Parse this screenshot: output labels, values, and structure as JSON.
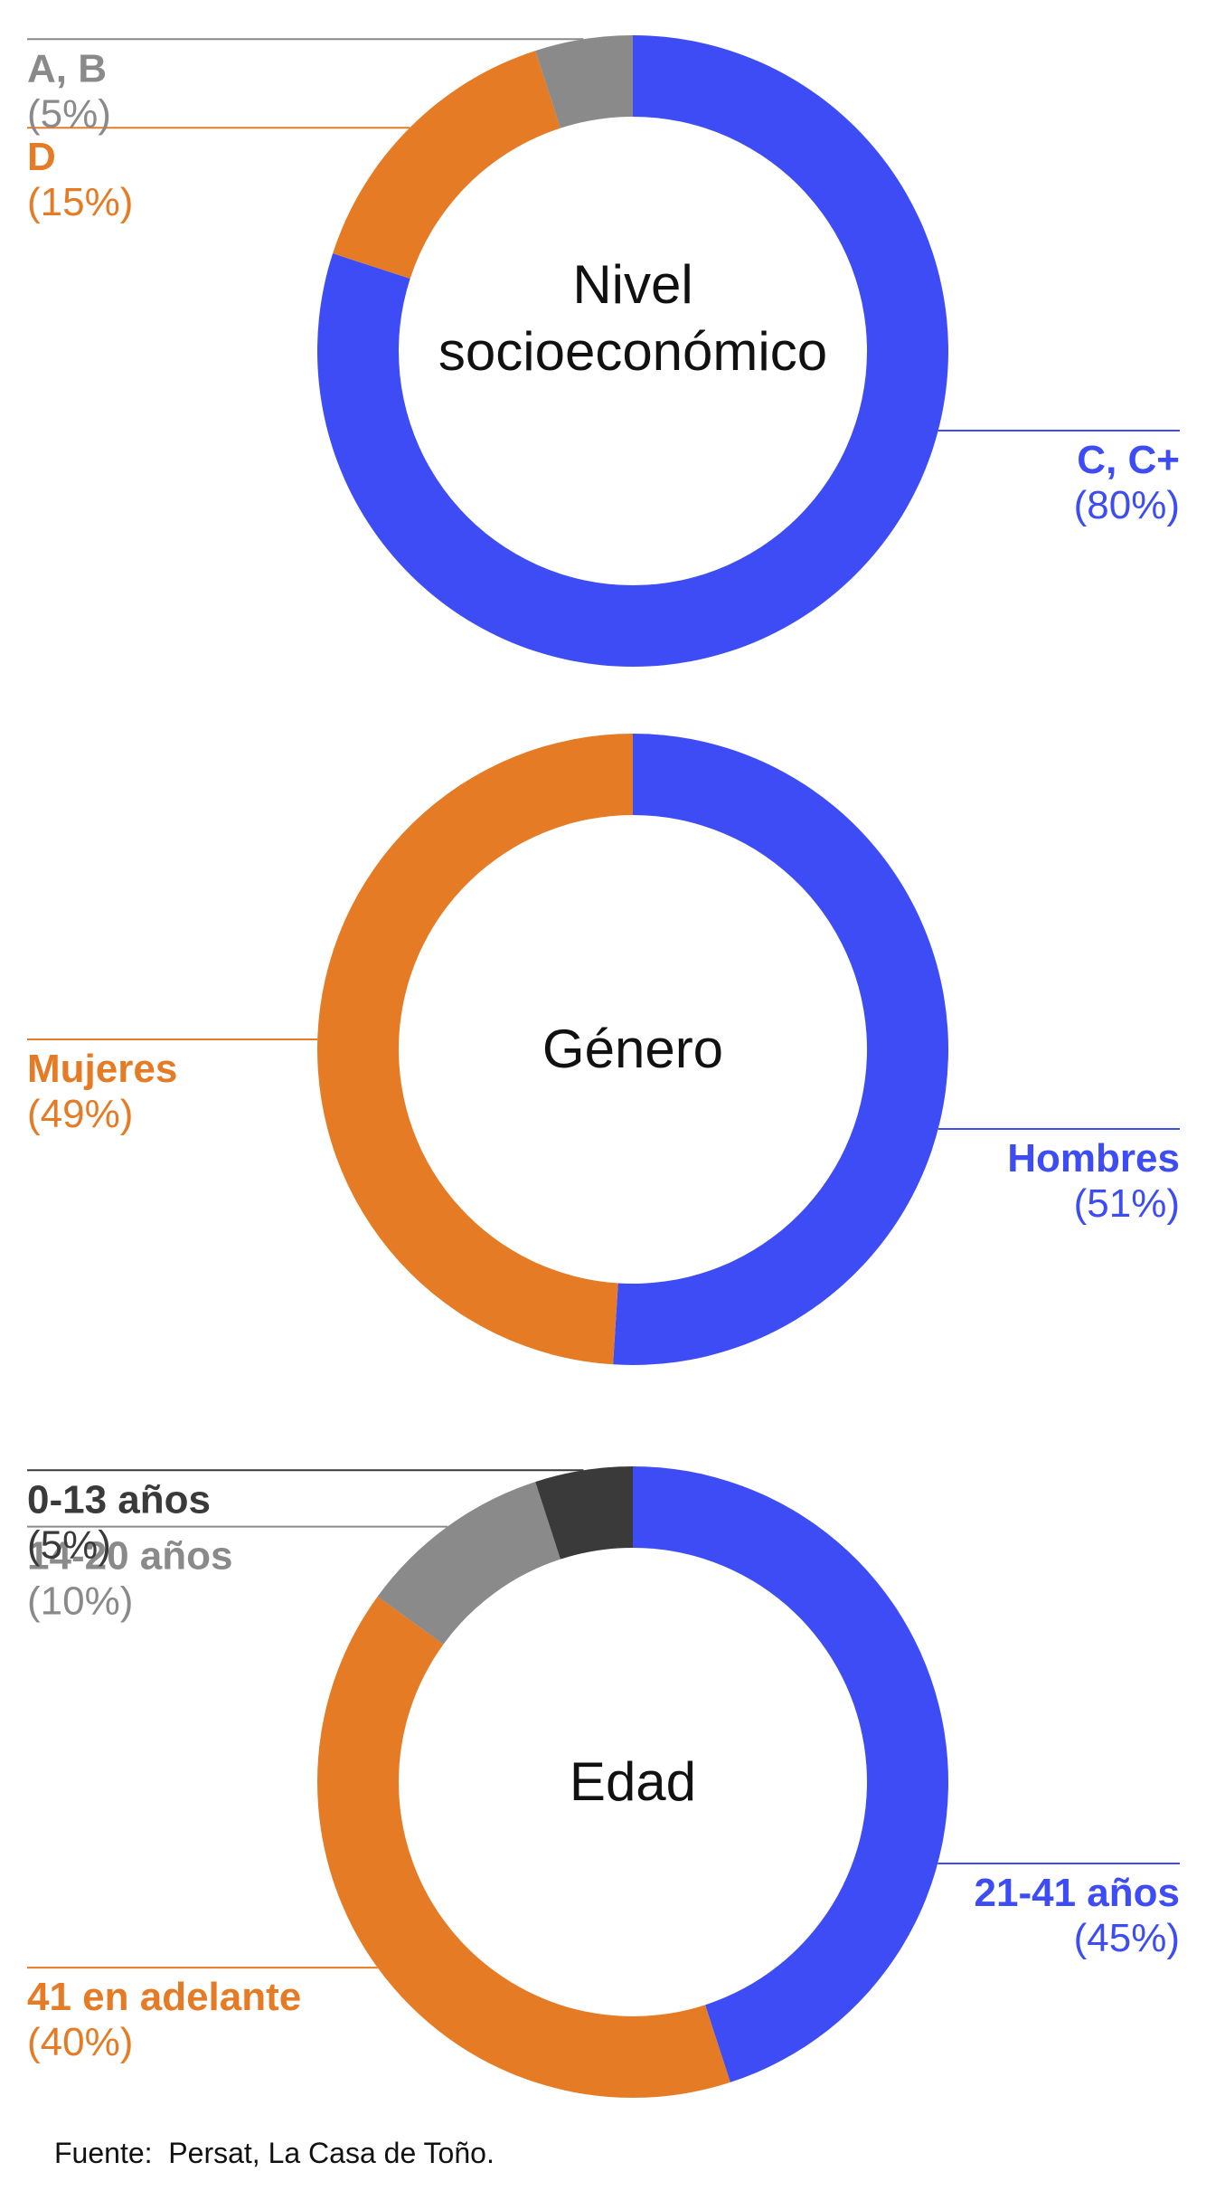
{
  "chart_data": [
    {
      "type": "pie",
      "title": "Nivel socioeconómico",
      "title_lines": [
        "Nivel",
        "socioeconómico"
      ],
      "slices": [
        {
          "label": "C, C+",
          "value": 80,
          "pct_text": "(80%)",
          "color": "#3d4cf5",
          "label_side": "right"
        },
        {
          "label": "D",
          "value": 15,
          "pct_text": "(15%)",
          "color": "#e57b25",
          "label_side": "left"
        },
        {
          "label": "A, B",
          "value": 5,
          "pct_text": "(5%)",
          "color": "#8a8a8a",
          "label_side": "left"
        }
      ]
    },
    {
      "type": "pie",
      "title": "Género",
      "title_lines": [
        "Género"
      ],
      "slices": [
        {
          "label": "Hombres",
          "value": 51,
          "pct_text": "(51%)",
          "color": "#3d4cf5",
          "label_side": "right"
        },
        {
          "label": "Mujeres",
          "value": 49,
          "pct_text": "(49%)",
          "color": "#e57b25",
          "label_side": "left"
        }
      ]
    },
    {
      "type": "pie",
      "title": "Edad",
      "title_lines": [
        "Edad"
      ],
      "slices": [
        {
          "label": "21-41 años",
          "value": 45,
          "pct_text": "(45%)",
          "color": "#3d4cf5",
          "label_side": "right"
        },
        {
          "label": "41 en adelante",
          "value": 40,
          "pct_text": "(40%)",
          "color": "#e57b25",
          "label_side": "left"
        },
        {
          "label": "14-20 años",
          "value": 10,
          "pct_text": "(10%)",
          "color": "#8a8a8a",
          "label_side": "left"
        },
        {
          "label": "0-13 años",
          "value": 5,
          "pct_text": "(5%)",
          "color": "#3a3a3a",
          "label_side": "left"
        }
      ]
    }
  ],
  "source": "Fuente:  Persat, La Casa de Toño."
}
